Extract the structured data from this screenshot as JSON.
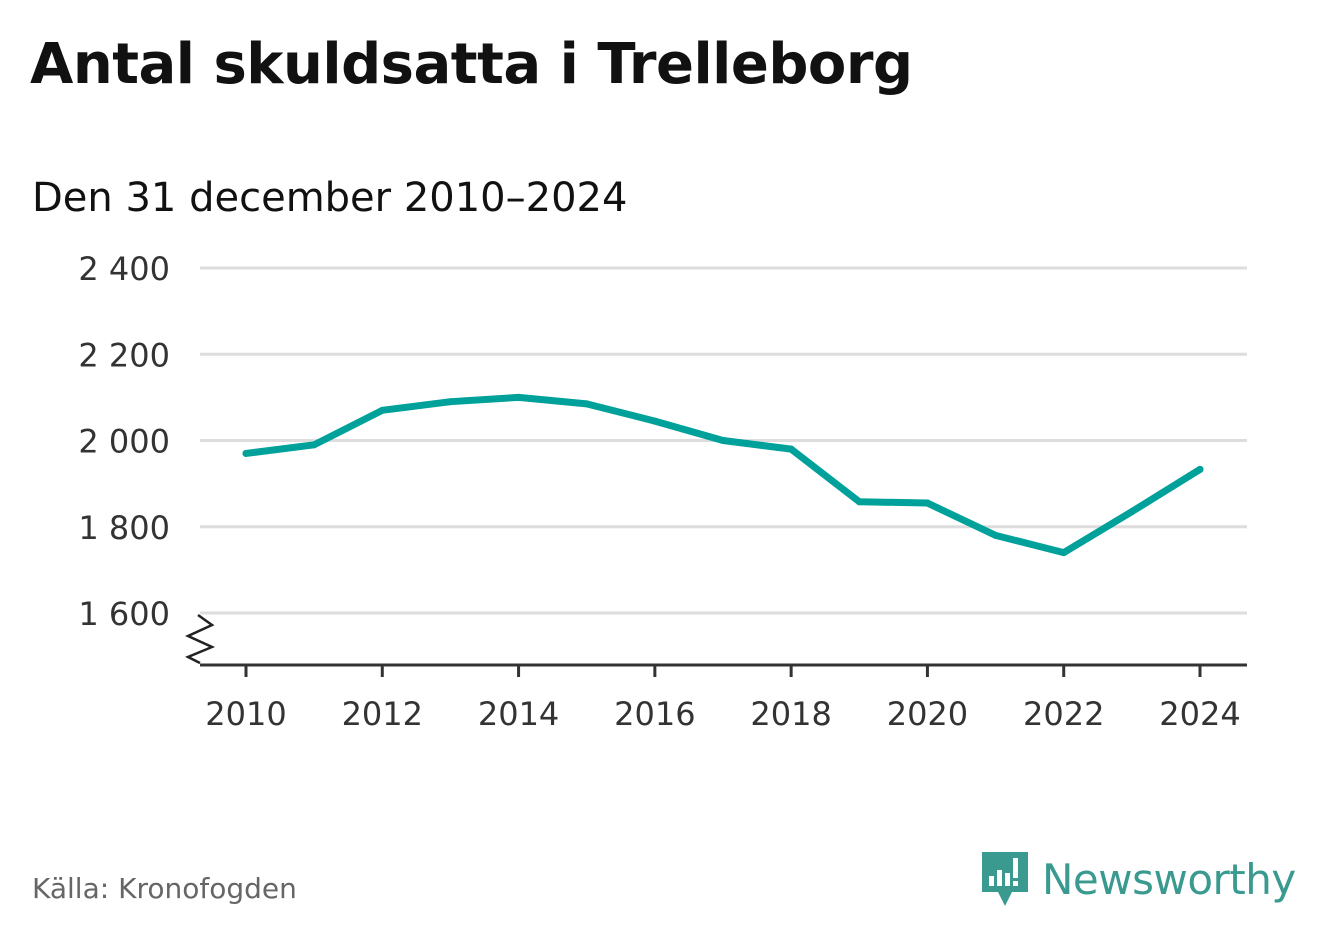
{
  "title": "Antal skuldsatta i Trelleborg",
  "subtitle": "Den 31 december 2010–2024",
  "source": "Källa: Kronofogden",
  "brand": {
    "name": "Newsworthy",
    "icon": "newsworthy-logo-icon",
    "color": "#3a9a8f"
  },
  "chart_data": {
    "type": "line",
    "title": "Antal skuldsatta i Trelleborg",
    "subtitle": "Den 31 december 2010–2024",
    "xlabel": "",
    "ylabel": "",
    "x": [
      2010,
      2011,
      2012,
      2013,
      2014,
      2015,
      2016,
      2017,
      2018,
      2019,
      2020,
      2021,
      2022,
      2023,
      2024
    ],
    "series": [
      {
        "values": [
          1970,
          1990,
          2070,
          2090,
          2100,
          2085,
          2045,
          2000,
          1980,
          1858,
          1855,
          1780,
          1740,
          1835,
          1933
        ]
      }
    ],
    "xticks": [
      2010,
      2012,
      2014,
      2016,
      2018,
      2020,
      2022,
      2024
    ],
    "xtick_labels": [
      "2010",
      "2012",
      "2014",
      "2016",
      "2018",
      "2020",
      "2022",
      "2024"
    ],
    "yticks": [
      1600,
      1800,
      2000,
      2200,
      2400
    ],
    "ytick_labels": [
      "1 600",
      "1 800",
      "2 000",
      "2 200",
      "2 400"
    ],
    "ylim": [
      1600,
      2400
    ],
    "xlim": [
      2010,
      2024
    ],
    "axis_break": true,
    "grid": true,
    "line_color": "#00a19a",
    "grid_color": "#dddddd"
  }
}
